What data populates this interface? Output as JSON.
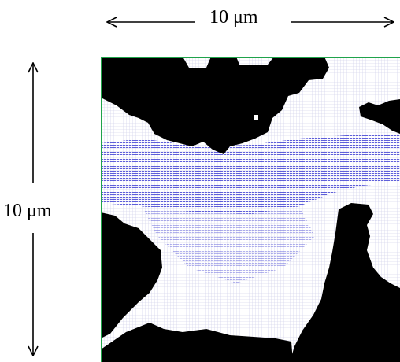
{
  "scale": {
    "horizontal_label": "10 μm",
    "vertical_label": "10 μm"
  },
  "figure": {
    "frame_color": "#1fa34a",
    "solid_color": "#000000",
    "pore_color": "#ffffff",
    "flow_color": "#2e2ed0",
    "grid_color": "#c8c8e6"
  }
}
